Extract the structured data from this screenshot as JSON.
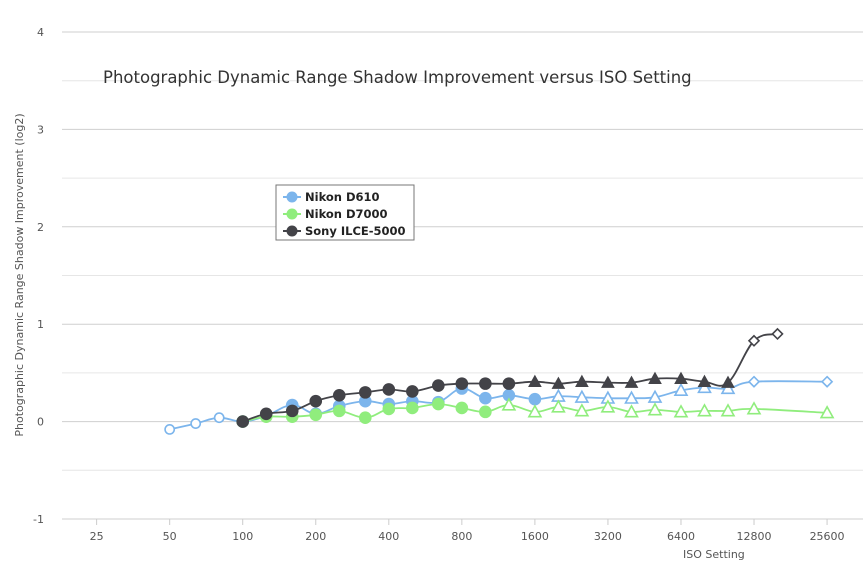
{
  "chart_data": {
    "type": "line",
    "title": "Photographic Dynamic Range Shadow Improvement versus ISO Setting",
    "xlabel": "ISO Setting",
    "ylabel": "Photographic Dynamic Range Shadow Improvement (log2)",
    "x_scale": "log2",
    "xlim": [
      18,
      36000
    ],
    "ylim": [
      -1,
      4
    ],
    "y_ticks": [
      -1,
      0,
      1,
      2,
      3,
      4
    ],
    "x_ticks": [
      25,
      50,
      100,
      200,
      400,
      800,
      1600,
      3200,
      6400,
      12800,
      25600
    ],
    "grid": true,
    "legend_position": "upper-left",
    "series": [
      {
        "name": "Nikon D610",
        "color": "#7cb5ec",
        "points": [
          {
            "x": 50,
            "y": -0.08,
            "m": "open-circle"
          },
          {
            "x": 64,
            "y": -0.02,
            "m": "open-circle"
          },
          {
            "x": 80,
            "y": 0.04,
            "m": "open-circle"
          },
          {
            "x": 100,
            "y": 0.0,
            "m": "circle"
          },
          {
            "x": 125,
            "y": 0.06,
            "m": "circle"
          },
          {
            "x": 160,
            "y": 0.17,
            "m": "circle"
          },
          {
            "x": 200,
            "y": 0.08,
            "m": "circle"
          },
          {
            "x": 250,
            "y": 0.16,
            "m": "circle"
          },
          {
            "x": 320,
            "y": 0.21,
            "m": "circle"
          },
          {
            "x": 400,
            "y": 0.18,
            "m": "circle"
          },
          {
            "x": 500,
            "y": 0.21,
            "m": "circle"
          },
          {
            "x": 640,
            "y": 0.2,
            "m": "circle"
          },
          {
            "x": 800,
            "y": 0.34,
            "m": "circle"
          },
          {
            "x": 1000,
            "y": 0.24,
            "m": "circle"
          },
          {
            "x": 1250,
            "y": 0.27,
            "m": "circle"
          },
          {
            "x": 1600,
            "y": 0.23,
            "m": "circle"
          },
          {
            "x": 2000,
            "y": 0.26,
            "m": "open-triangle"
          },
          {
            "x": 2500,
            "y": 0.25,
            "m": "open-triangle"
          },
          {
            "x": 3200,
            "y": 0.24,
            "m": "open-triangle"
          },
          {
            "x": 4000,
            "y": 0.24,
            "m": "open-triangle"
          },
          {
            "x": 5000,
            "y": 0.25,
            "m": "open-triangle"
          },
          {
            "x": 6400,
            "y": 0.32,
            "m": "open-triangle"
          },
          {
            "x": 8000,
            "y": 0.35,
            "m": "open-triangle"
          },
          {
            "x": 10000,
            "y": 0.34,
            "m": "open-triangle"
          },
          {
            "x": 12800,
            "y": 0.41,
            "m": "open-diamond"
          },
          {
            "x": 25600,
            "y": 0.41,
            "m": "open-diamond"
          }
        ]
      },
      {
        "name": "Nikon D7000",
        "color": "#90ed7d",
        "points": [
          {
            "x": 100,
            "y": 0.0,
            "m": "circle"
          },
          {
            "x": 125,
            "y": 0.05,
            "m": "circle"
          },
          {
            "x": 160,
            "y": 0.05,
            "m": "circle"
          },
          {
            "x": 200,
            "y": 0.07,
            "m": "circle"
          },
          {
            "x": 250,
            "y": 0.11,
            "m": "circle"
          },
          {
            "x": 320,
            "y": 0.04,
            "m": "circle"
          },
          {
            "x": 400,
            "y": 0.13,
            "m": "circle"
          },
          {
            "x": 500,
            "y": 0.14,
            "m": "circle"
          },
          {
            "x": 640,
            "y": 0.18,
            "m": "circle"
          },
          {
            "x": 800,
            "y": 0.14,
            "m": "circle"
          },
          {
            "x": 1000,
            "y": 0.1,
            "m": "circle"
          },
          {
            "x": 1250,
            "y": 0.17,
            "m": "open-triangle"
          },
          {
            "x": 1600,
            "y": 0.1,
            "m": "open-triangle"
          },
          {
            "x": 2000,
            "y": 0.15,
            "m": "open-triangle"
          },
          {
            "x": 2500,
            "y": 0.11,
            "m": "open-triangle"
          },
          {
            "x": 3200,
            "y": 0.15,
            "m": "open-triangle"
          },
          {
            "x": 4000,
            "y": 0.1,
            "m": "open-triangle"
          },
          {
            "x": 5000,
            "y": 0.12,
            "m": "open-triangle"
          },
          {
            "x": 6400,
            "y": 0.1,
            "m": "open-triangle"
          },
          {
            "x": 8000,
            "y": 0.11,
            "m": "open-triangle"
          },
          {
            "x": 10000,
            "y": 0.11,
            "m": "open-triangle"
          },
          {
            "x": 12800,
            "y": 0.13,
            "m": "open-triangle"
          },
          {
            "x": 25600,
            "y": 0.09,
            "m": "open-triangle"
          }
        ]
      },
      {
        "name": "Sony ILCE-5000",
        "color": "#434348",
        "points": [
          {
            "x": 100,
            "y": 0.0,
            "m": "circle"
          },
          {
            "x": 125,
            "y": 0.08,
            "m": "circle"
          },
          {
            "x": 160,
            "y": 0.11,
            "m": "circle"
          },
          {
            "x": 200,
            "y": 0.21,
            "m": "circle"
          },
          {
            "x": 250,
            "y": 0.27,
            "m": "circle"
          },
          {
            "x": 320,
            "y": 0.3,
            "m": "circle"
          },
          {
            "x": 400,
            "y": 0.33,
            "m": "circle"
          },
          {
            "x": 500,
            "y": 0.31,
            "m": "circle"
          },
          {
            "x": 640,
            "y": 0.37,
            "m": "circle"
          },
          {
            "x": 800,
            "y": 0.39,
            "m": "circle"
          },
          {
            "x": 1000,
            "y": 0.39,
            "m": "circle"
          },
          {
            "x": 1250,
            "y": 0.39,
            "m": "circle"
          },
          {
            "x": 1600,
            "y": 0.41,
            "m": "triangle"
          },
          {
            "x": 2000,
            "y": 0.39,
            "m": "triangle"
          },
          {
            "x": 2500,
            "y": 0.41,
            "m": "triangle"
          },
          {
            "x": 3200,
            "y": 0.4,
            "m": "triangle"
          },
          {
            "x": 4000,
            "y": 0.4,
            "m": "triangle"
          },
          {
            "x": 5000,
            "y": 0.44,
            "m": "triangle"
          },
          {
            "x": 6400,
            "y": 0.44,
            "m": "triangle"
          },
          {
            "x": 8000,
            "y": 0.41,
            "m": "triangle"
          },
          {
            "x": 10000,
            "y": 0.4,
            "m": "triangle"
          },
          {
            "x": 12800,
            "y": 0.83,
            "m": "open-diamond"
          },
          {
            "x": 16000,
            "y": 0.9,
            "m": "open-diamond"
          }
        ]
      }
    ]
  }
}
